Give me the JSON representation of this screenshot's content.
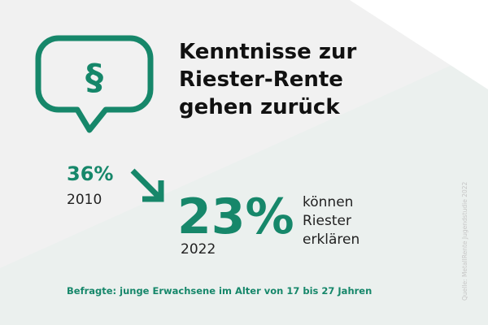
{
  "title": [
    "Kenntnisse zur",
    "Riester-Rente",
    "gehen zurück"
  ],
  "before": {
    "value": "36%",
    "year": "2010"
  },
  "after": {
    "value": "23%",
    "year": "2022"
  },
  "caption": [
    "können",
    "Riester",
    "erklären"
  ],
  "footnote": "Befragte: junge Erwachsene im Alter von 17 bis 27 Jahren",
  "source": "Quelle: MetallRente Jugendstudie 2022"
}
